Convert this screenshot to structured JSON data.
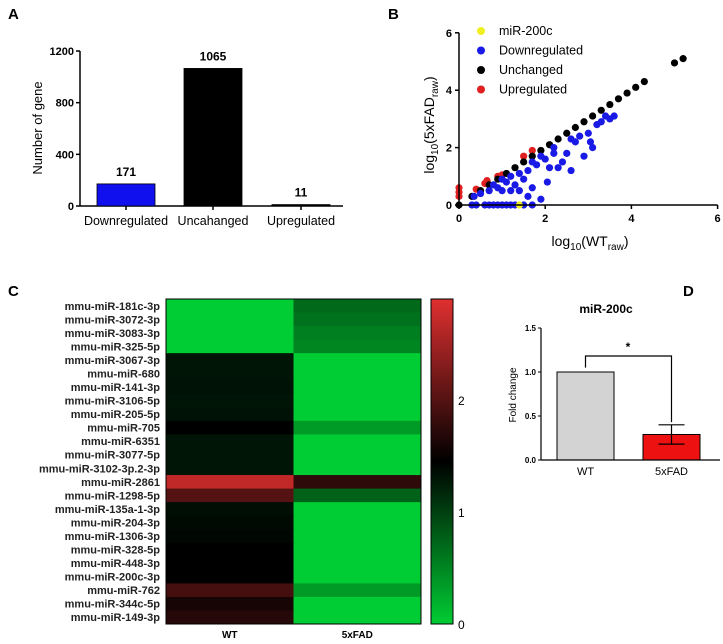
{
  "panel_labels": [
    "A",
    "B",
    "C",
    "D"
  ],
  "chart_data": [
    {
      "panel": "A",
      "type": "bar",
      "categories": [
        "Downregulated",
        "Uncahanged",
        "Upregulated"
      ],
      "values": [
        171,
        1065,
        11
      ],
      "data_labels": [
        "171",
        "1065",
        "11"
      ],
      "colors": [
        "#1010ee",
        "#000000",
        "#000000"
      ],
      "ylabel": "Number of gene",
      "ylim": [
        0,
        1200
      ],
      "yticks": [
        0,
        400,
        800,
        1200
      ]
    },
    {
      "panel": "B",
      "type": "scatter",
      "xlabel": "log10(WTraw)",
      "ylabel": "log10(5xFADraw)",
      "xlim": [
        0,
        6
      ],
      "ylim": [
        0,
        6
      ],
      "xticks": [
        0,
        2,
        4,
        6
      ],
      "yticks": [
        0,
        2,
        4,
        6
      ],
      "legend_position": "top-left",
      "series": [
        {
          "name": "miR-200c",
          "color": "#f0f020",
          "points": [
            [
              1.4,
              0
            ]
          ]
        },
        {
          "name": "Downregulated",
          "color": "#1a1ae6",
          "points": [
            [
              0.3,
              0
            ],
            [
              0.4,
              0
            ],
            [
              0.6,
              0
            ],
            [
              0.7,
              0
            ],
            [
              0.8,
              0
            ],
            [
              0.9,
              0
            ],
            [
              1.0,
              0
            ],
            [
              1.1,
              0
            ],
            [
              1.2,
              0
            ],
            [
              1.3,
              0
            ],
            [
              1.5,
              0
            ],
            [
              1.7,
              0
            ],
            [
              0.35,
              0.3
            ],
            [
              0.5,
              0.4
            ],
            [
              0.7,
              0.5
            ],
            [
              0.9,
              0.6
            ],
            [
              1.0,
              0.5
            ],
            [
              1.1,
              0.8
            ],
            [
              1.2,
              0.5
            ],
            [
              1.3,
              0.7
            ],
            [
              1.4,
              0.5
            ],
            [
              1.5,
              0.9
            ],
            [
              1.6,
              0.3
            ],
            [
              1.4,
              1.1
            ],
            [
              1.6,
              1.2
            ],
            [
              1.7,
              0.6
            ],
            [
              1.8,
              1.4
            ],
            [
              1.9,
              0.2
            ],
            [
              2.0,
              1.6
            ],
            [
              2.05,
              0.8
            ],
            [
              2.1,
              1.3
            ],
            [
              2.2,
              1.8
            ],
            [
              2.3,
              1.3
            ],
            [
              2.4,
              1.5
            ],
            [
              2.5,
              1.8
            ],
            [
              2.6,
              1.2
            ],
            [
              2.7,
              2.2
            ],
            [
              2.8,
              2.4
            ],
            [
              2.9,
              1.7
            ],
            [
              3.0,
              2.5
            ],
            [
              3.05,
              2.2
            ],
            [
              3.1,
              2.0
            ],
            [
              3.2,
              2.8
            ],
            [
              3.3,
              2.9
            ],
            [
              3.5,
              3.0
            ],
            [
              3.6,
              3.1
            ],
            [
              1.2,
              1.0
            ],
            [
              0.8,
              0.7
            ],
            [
              1.0,
              0.9
            ],
            [
              1.7,
              1.5
            ],
            [
              1.9,
              1.7
            ],
            [
              2.2,
              2.0
            ],
            [
              2.6,
              2.3
            ],
            [
              3.4,
              3.1
            ]
          ]
        },
        {
          "name": "Unchanged",
          "color": "#000000",
          "points": [
            [
              0,
              0
            ],
            [
              0.3,
              0.3
            ],
            [
              0.5,
              0.5
            ],
            [
              0.7,
              0.7
            ],
            [
              0.9,
              0.9
            ],
            [
              1.1,
              1.1
            ],
            [
              1.3,
              1.3
            ],
            [
              1.5,
              1.5
            ],
            [
              1.7,
              1.7
            ],
            [
              1.9,
              1.9
            ],
            [
              2.1,
              2.1
            ],
            [
              2.3,
              2.3
            ],
            [
              2.5,
              2.5
            ],
            [
              2.7,
              2.7
            ],
            [
              2.9,
              2.9
            ],
            [
              3.1,
              3.1
            ],
            [
              3.3,
              3.3
            ],
            [
              3.5,
              3.5
            ],
            [
              3.7,
              3.7
            ],
            [
              3.9,
              3.9
            ],
            [
              4.1,
              4.1
            ],
            [
              4.3,
              4.3
            ],
            [
              5.0,
              4.95
            ],
            [
              5.2,
              5.1
            ]
          ]
        },
        {
          "name": "Upregulated",
          "color": "#e02020",
          "points": [
            [
              0,
              0.3
            ],
            [
              0,
              0.45
            ],
            [
              0,
              0.6
            ],
            [
              0.4,
              0.55
            ],
            [
              0.6,
              0.75
            ],
            [
              0.65,
              0.85
            ],
            [
              0.9,
              1.0
            ],
            [
              1.0,
              1.05
            ],
            [
              1.5,
              1.7
            ],
            [
              1.7,
              1.9
            ]
          ]
        }
      ]
    },
    {
      "panel": "C",
      "type": "heatmap",
      "columns": [
        "WT",
        "5xFAD"
      ],
      "rows": [
        "mmu-miR-181c-3p",
        "mmu-miR-3072-3p",
        "mmu-miR-3083-3p",
        "mmu-miR-325-5p",
        "mmu-miR-3067-3p",
        "mmu-miR-680",
        "mmu-miR-141-3p",
        "mmu-miR-3106-5p",
        "mmu-miR-205-5p",
        "mmu-miR-705",
        "mmu-miR-6351",
        "mmu-miR-3077-5p",
        "mmu-miR-3102-3p.2-3p",
        "mmu-miR-2861",
        "mmu-miR-1298-5p",
        "mmu-miR-135a-1-3p",
        "mmu-miR-204-3p",
        "mmu-miR-1306-3p",
        "mmu-miR-328-5p",
        "mmu-miR-448-3p",
        "mmu-miR-200c-3p",
        "mmu-miR-762",
        "mmu-miR-344c-5p",
        "mmu-miR-149-3p"
      ],
      "values": [
        [
          0,
          0.7
        ],
        [
          0,
          0.65
        ],
        [
          0,
          0.55
        ],
        [
          0,
          0.5
        ],
        [
          1.3,
          0
        ],
        [
          1.3,
          0
        ],
        [
          1.32,
          0
        ],
        [
          1.3,
          0
        ],
        [
          1.32,
          0
        ],
        [
          1.45,
          0.35
        ],
        [
          1.3,
          0
        ],
        [
          1.3,
          0
        ],
        [
          1.3,
          0
        ],
        [
          2.7,
          1.75
        ],
        [
          2.0,
          0.75
        ],
        [
          1.35,
          0
        ],
        [
          1.38,
          0
        ],
        [
          1.4,
          0
        ],
        [
          1.45,
          0
        ],
        [
          1.45,
          0
        ],
        [
          1.45,
          0
        ],
        [
          1.9,
          0.35
        ],
        [
          1.6,
          0
        ],
        [
          1.7,
          0
        ]
      ],
      "colorbar": {
        "ticks": [
          0,
          1,
          2
        ],
        "range": [
          0,
          2.9
        ],
        "colors": [
          "#00cc33",
          "#000000",
          "#e03030"
        ]
      }
    },
    {
      "panel": "D",
      "type": "bar",
      "title": "miR-200c",
      "categories": [
        "WT",
        "5xFAD"
      ],
      "values": [
        1.0,
        0.29
      ],
      "errors": [
        0,
        0.11
      ],
      "colors": [
        "#d3d3d3",
        "#ee1111"
      ],
      "ylabel": "Fold change",
      "ylim": [
        0,
        1.5
      ],
      "yticks": [
        "0.0",
        "0.5",
        "1.0",
        "1.5"
      ],
      "significance": "*"
    }
  ]
}
